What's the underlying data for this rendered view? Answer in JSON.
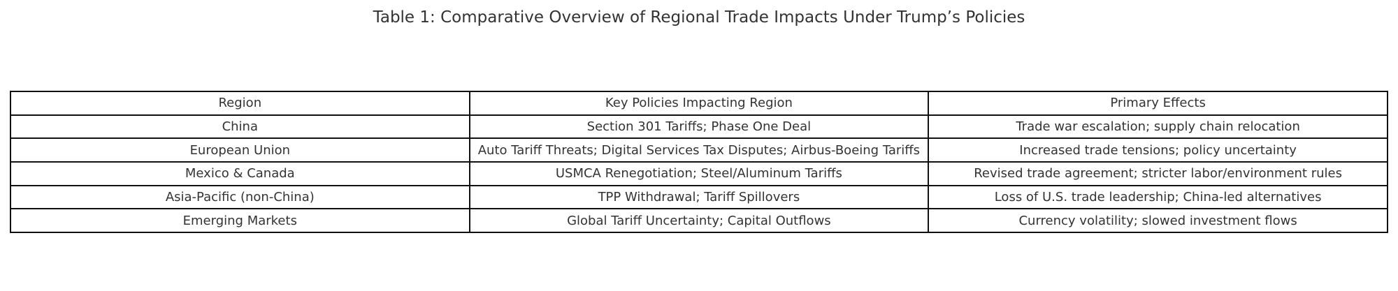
{
  "header": {
    "title": "Table 1: Comparative Overview of Regional Trade Impacts Under Trump’s Policies"
  },
  "table": {
    "columns": [
      "Region",
      "Key Policies Impacting Region",
      "Primary Effects"
    ],
    "rows": [
      [
        "China",
        "Section 301 Tariffs; Phase One Deal",
        "Trade war escalation; supply chain relocation"
      ],
      [
        "European Union",
        "Auto Tariff Threats; Digital Services Tax Disputes; Airbus-Boeing Tariffs",
        "Increased trade tensions; policy uncertainty"
      ],
      [
        "Mexico & Canada",
        "USMCA Renegotiation; Steel/Aluminum Tariffs",
        "Revised trade agreement; stricter labor/environment rules"
      ],
      [
        "Asia-Pacific (non-China)",
        "TPP Withdrawal; Tariff Spillovers",
        "Loss of U.S. trade leadership; China-led alternatives"
      ],
      [
        "Emerging Markets",
        "Global Tariff Uncertainty; Capital Outflows",
        "Currency volatility; slowed investment flows"
      ]
    ]
  }
}
